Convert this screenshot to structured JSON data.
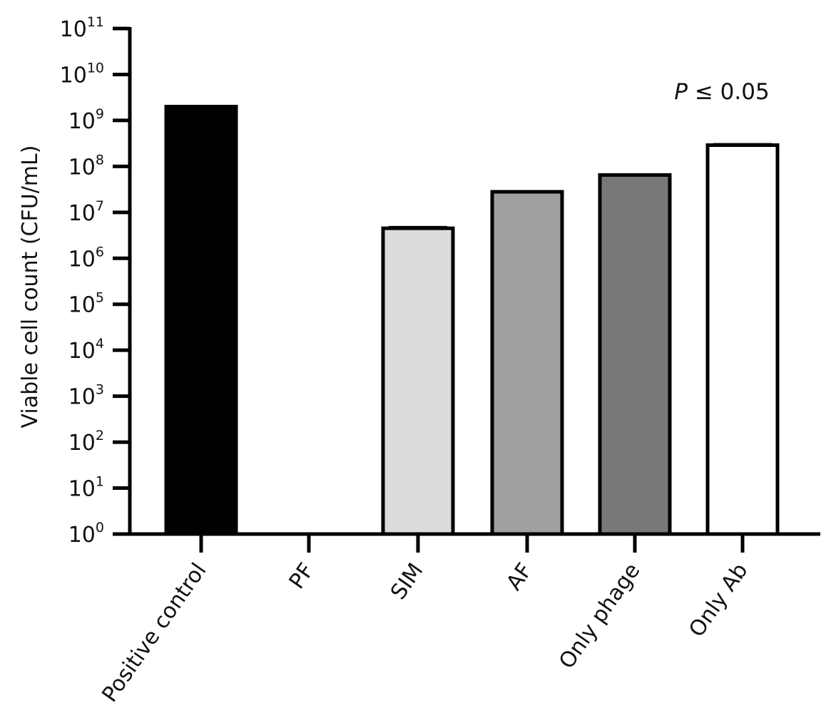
{
  "chart_data": {
    "type": "bar",
    "title": "",
    "xlabel": "",
    "ylabel": "Viable cell count (CFU/mL)",
    "yscale": "log",
    "ylim": [
      1,
      100000000000
    ],
    "grid": false,
    "legend": "none",
    "yticks": [
      {
        "base": "10",
        "exp": "0"
      },
      {
        "base": "10",
        "exp": "1"
      },
      {
        "base": "10",
        "exp": "2"
      },
      {
        "base": "10",
        "exp": "3"
      },
      {
        "base": "10",
        "exp": "4"
      },
      {
        "base": "10",
        "exp": "5"
      },
      {
        "base": "10",
        "exp": "6"
      },
      {
        "base": "10",
        "exp": "7"
      },
      {
        "base": "10",
        "exp": "8"
      },
      {
        "base": "10",
        "exp": "9"
      },
      {
        "base": "10",
        "exp": "10"
      },
      {
        "base": "10",
        "exp": "11"
      }
    ],
    "categories": [
      "Positive control",
      "PF",
      "SIM",
      "AF",
      "Only phage",
      "Only Ab"
    ],
    "values": [
      2000000000,
      1,
      4500000,
      28000000,
      65000000,
      290000000
    ],
    "error": [
      0,
      0,
      300000,
      1000000,
      1500000,
      15000000
    ],
    "bar_colors": [
      "#000000",
      "#ffffff",
      "#dcdcdc",
      "#a0a0a0",
      "#787878",
      "#ffffff"
    ],
    "annotation": {
      "italic": "P",
      "rest": " ≤ 0.05"
    }
  }
}
